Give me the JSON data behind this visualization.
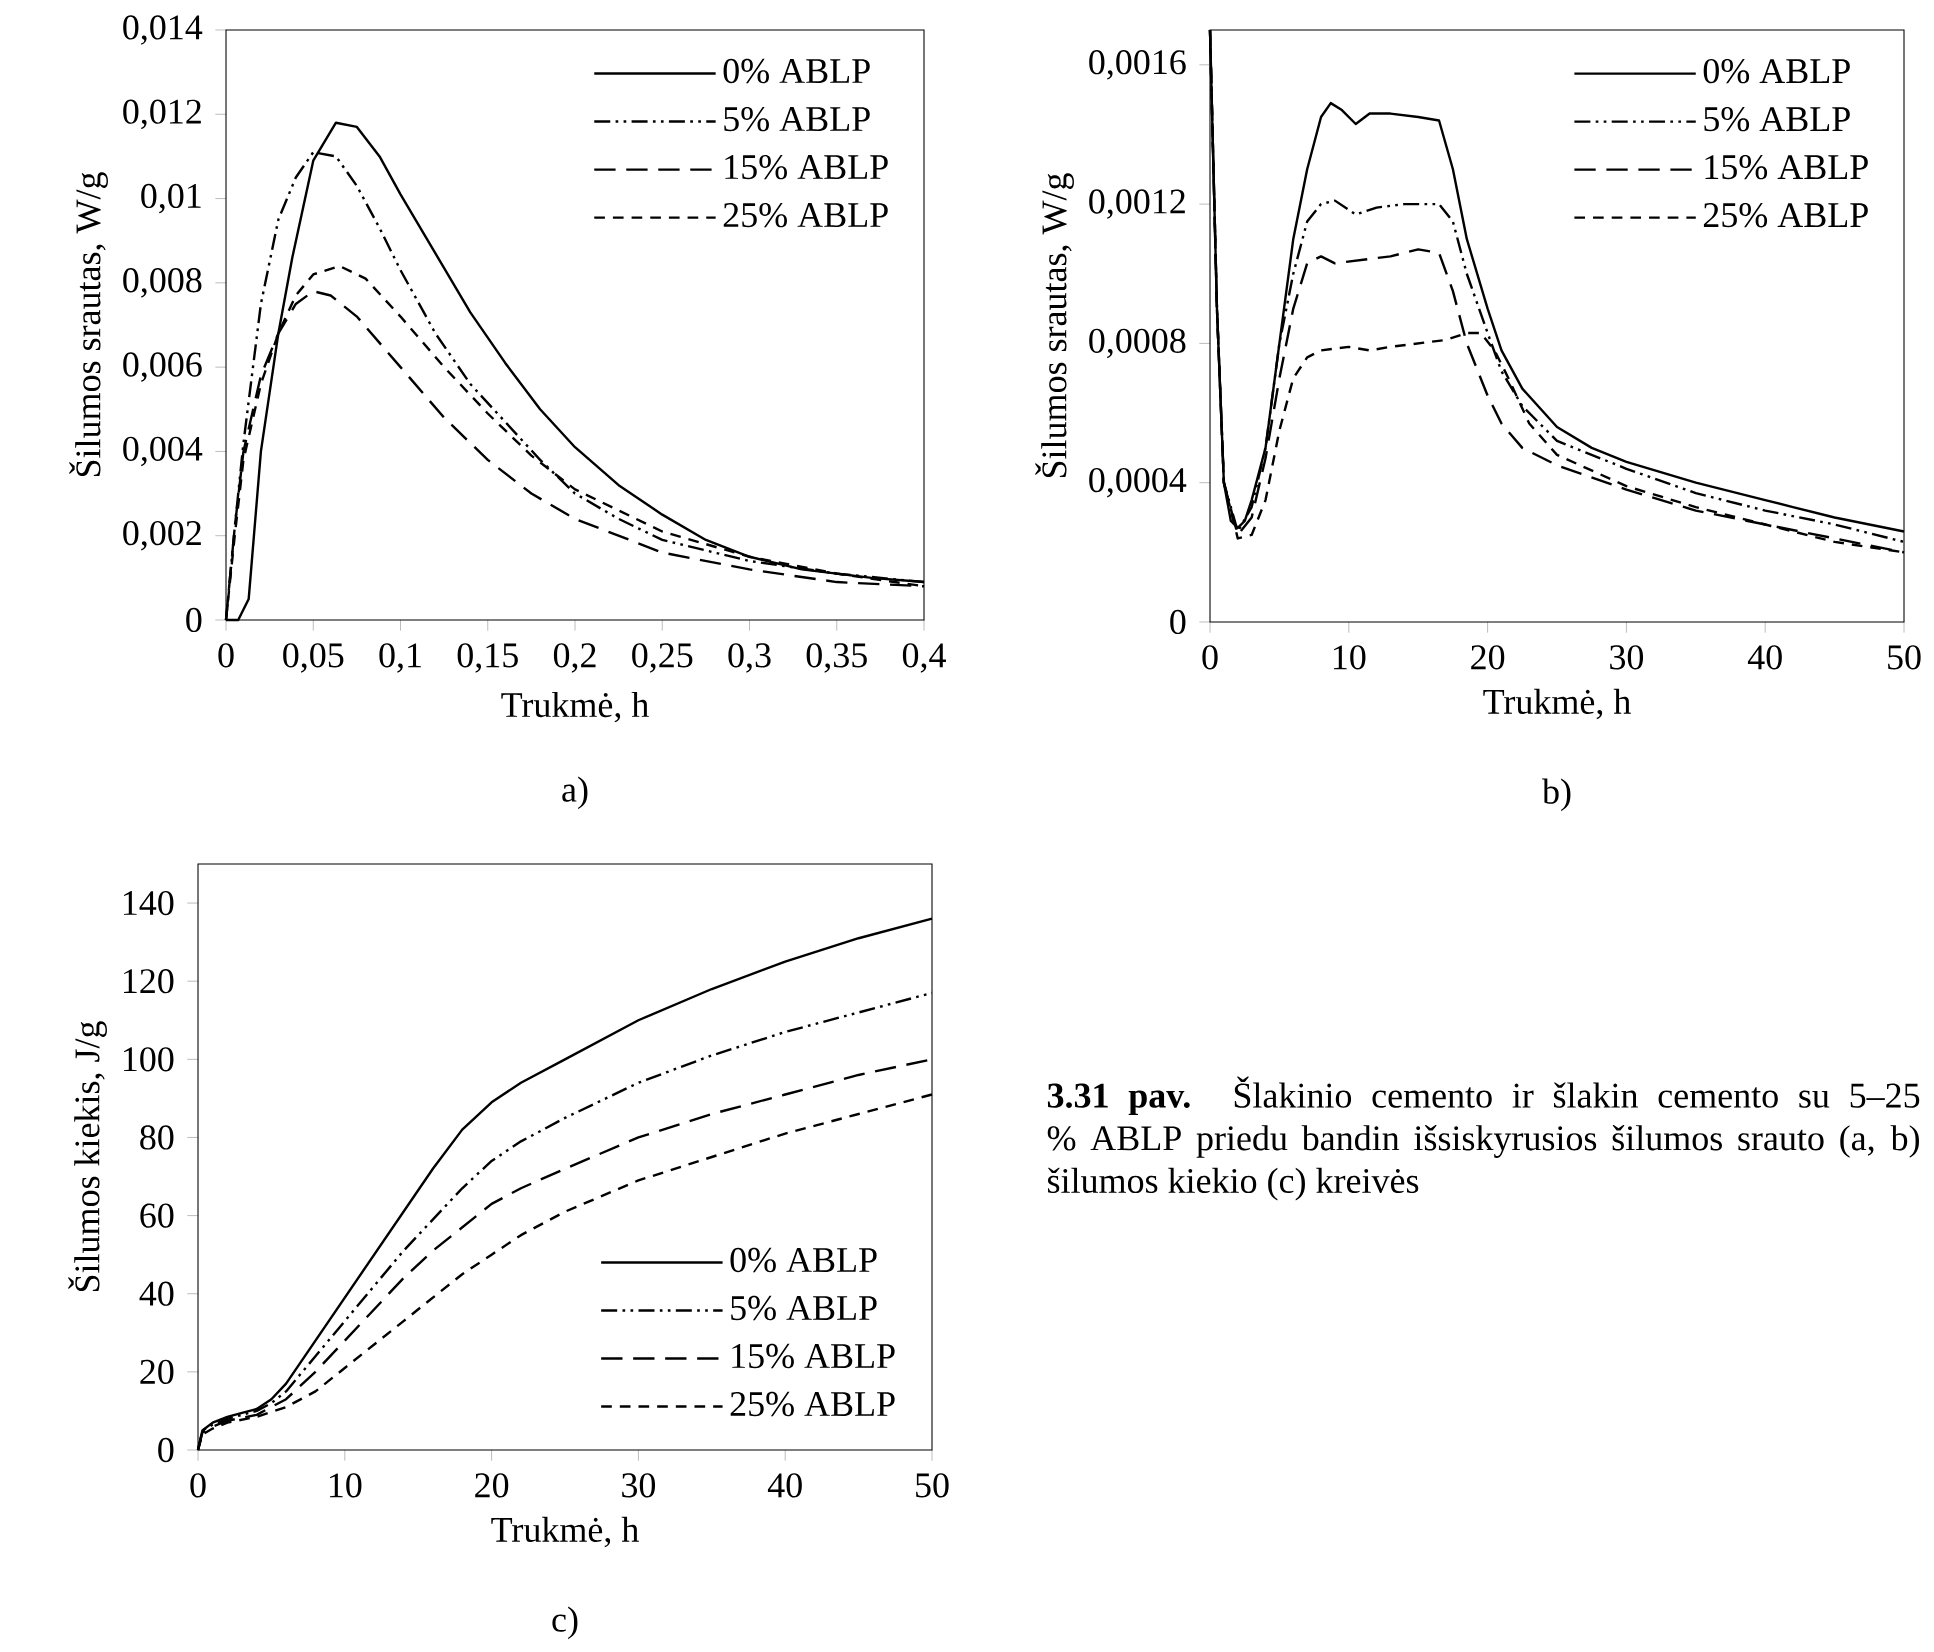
{
  "chart_data": [
    {
      "type": "line",
      "xlabel": "Trukmė, h",
      "ylabel": "Šilumos srautas, W/g",
      "annotations": [
        "a)"
      ],
      "legend": "top right",
      "xlim": [
        0,
        0.4
      ],
      "ylim": [
        0,
        0.014
      ],
      "xticks": [
        0,
        {
          "value": 0.05,
          "label": "0,05"
        },
        {
          "value": 0.1,
          "label": "0,1"
        },
        {
          "value": 0.15,
          "label": "0,15"
        },
        {
          "value": 0.2,
          "label": "0,2"
        },
        {
          "value": 0.25,
          "label": "0,25"
        },
        {
          "value": 0.3,
          "label": "0,3"
        },
        {
          "value": 0.35,
          "label": "0,35"
        },
        {
          "value": 0.4,
          "label": "0,4"
        }
      ],
      "yticks": [
        0,
        {
          "value": 0.002,
          "label": "0,002"
        },
        {
          "value": 0.004,
          "label": "0,004"
        },
        {
          "value": 0.006,
          "label": "0,006"
        },
        {
          "value": 0.008,
          "label": "0,008"
        },
        {
          "value": 0.01,
          "label": "0,01"
        },
        {
          "value": 0.012,
          "label": "0,012"
        },
        {
          "value": 0.014,
          "label": "0,014"
        }
      ],
      "series": [
        {
          "name": "0% ABLP",
          "color": "#000000",
          "line_style": "solid",
          "x": [
            0,
            0.007,
            0.013,
            0.02,
            0.03,
            0.038,
            0.05,
            0.063,
            0.075,
            0.088,
            0.1,
            0.12,
            0.14,
            0.16,
            0.18,
            0.2,
            0.225,
            0.25,
            0.275,
            0.3,
            0.33,
            0.37,
            0.4
          ],
          "values": [
            0,
            0,
            0.0005,
            0.004,
            0.0068,
            0.0086,
            0.0109,
            0.0118,
            0.0117,
            0.011,
            0.0101,
            0.0087,
            0.0073,
            0.0061,
            0.005,
            0.0041,
            0.0032,
            0.0025,
            0.0019,
            0.0015,
            0.0012,
            0.001,
            0.0009
          ]
        },
        {
          "name": "5% ABLP",
          "color": "#000000",
          "line_style": "dashdotdot",
          "x": [
            0,
            0.005,
            0.01,
            0.02,
            0.03,
            0.04,
            0.05,
            0.063,
            0.075,
            0.088,
            0.1,
            0.12,
            0.14,
            0.16,
            0.18,
            0.2,
            0.225,
            0.25,
            0.3,
            0.35,
            0.4
          ],
          "values": [
            0,
            0.0022,
            0.0042,
            0.0075,
            0.0095,
            0.0105,
            0.0111,
            0.011,
            0.0103,
            0.0093,
            0.0083,
            0.0068,
            0.0056,
            0.0047,
            0.0038,
            0.003,
            0.0024,
            0.0019,
            0.0014,
            0.0011,
            0.0009
          ]
        },
        {
          "name": "15% ABLP",
          "color": "#000000",
          "line_style": "longdashed",
          "x": [
            0,
            0.005,
            0.01,
            0.02,
            0.03,
            0.04,
            0.05,
            0.06,
            0.075,
            0.1,
            0.125,
            0.15,
            0.175,
            0.2,
            0.25,
            0.3,
            0.35,
            0.4
          ],
          "values": [
            0,
            0.0022,
            0.004,
            0.0058,
            0.0068,
            0.0075,
            0.0078,
            0.0077,
            0.0072,
            0.006,
            0.0048,
            0.0038,
            0.003,
            0.0024,
            0.0016,
            0.0012,
            0.0009,
            0.0008
          ]
        },
        {
          "name": "25% ABLP",
          "color": "#000000",
          "line_style": "dashed",
          "x": [
            0,
            0.005,
            0.01,
            0.02,
            0.03,
            0.04,
            0.05,
            0.065,
            0.08,
            0.1,
            0.125,
            0.15,
            0.175,
            0.2,
            0.25,
            0.3,
            0.35,
            0.4
          ],
          "values": [
            0,
            0.002,
            0.0038,
            0.0056,
            0.0068,
            0.0077,
            0.0082,
            0.0084,
            0.0081,
            0.0072,
            0.006,
            0.0049,
            0.0039,
            0.0031,
            0.0021,
            0.0015,
            0.0011,
            0.0008
          ]
        }
      ]
    },
    {
      "type": "line",
      "xlabel": "Trukmė, h",
      "ylabel": "Šilumos srautas, W/g",
      "annotations": [
        "b)"
      ],
      "legend": "top right",
      "xlim": [
        0,
        50
      ],
      "ylim": [
        0,
        0.0017
      ],
      "xticks": [
        0,
        10,
        20,
        30,
        40,
        50
      ],
      "yticks": [
        0,
        {
          "value": 0.0004,
          "label": "0,0004"
        },
        {
          "value": 0.0008,
          "label": "0,0008"
        },
        {
          "value": 0.0012,
          "label": "0,0012"
        },
        {
          "value": 0.0016,
          "label": "0,0016"
        }
      ],
      "series": [
        {
          "name": "0% ABLP",
          "color": "#000000",
          "line_style": "solid",
          "x": [
            0,
            0.5,
            1,
            1.5,
            2,
            2.5,
            3,
            4,
            5,
            6,
            7,
            8,
            8.7,
            9.5,
            10.5,
            11.5,
            13,
            15,
            16.5,
            17.5,
            18.5,
            20,
            21,
            22.5,
            25,
            27.5,
            30,
            35,
            40,
            42,
            45,
            50
          ],
          "values": [
            0.0017,
            0.0009,
            0.0004,
            0.00029,
            0.00027,
            0.00029,
            0.00035,
            0.0005,
            0.0008,
            0.0011,
            0.0013,
            0.00145,
            0.00149,
            0.00147,
            0.00143,
            0.00146,
            0.00146,
            0.00145,
            0.00144,
            0.0013,
            0.0011,
            0.0009,
            0.00078,
            0.00067,
            0.00056,
            0.0005,
            0.00046,
            0.0004,
            0.00035,
            0.00033,
            0.0003,
            0.00026
          ]
        },
        {
          "name": "5% ABLP",
          "color": "#000000",
          "line_style": "dashdotdot",
          "x": [
            0,
            0.5,
            1,
            2,
            3,
            4,
            5,
            6,
            7,
            8,
            9,
            10.5,
            12,
            14,
            16.5,
            17.5,
            18.5,
            20,
            21,
            22.5,
            25,
            30,
            35,
            40,
            45,
            50
          ],
          "values": [
            0.0017,
            0.0009,
            0.0004,
            0.00026,
            0.00033,
            0.0005,
            0.0008,
            0.001,
            0.00115,
            0.0012,
            0.00121,
            0.00117,
            0.00119,
            0.0012,
            0.0012,
            0.00115,
            0.001,
            0.00083,
            0.00072,
            0.00062,
            0.00052,
            0.00044,
            0.00037,
            0.00032,
            0.00028,
            0.00023
          ]
        },
        {
          "name": "15% ABLP",
          "color": "#000000",
          "line_style": "longdashed",
          "x": [
            0,
            0.5,
            1,
            2,
            3,
            4,
            5,
            6,
            7,
            8,
            9,
            11,
            13,
            15,
            16.5,
            17.5,
            18.5,
            20,
            21,
            22.5,
            25,
            30,
            35,
            40,
            45,
            50
          ],
          "values": [
            0.0017,
            0.0009,
            0.0004,
            0.00025,
            0.0003,
            0.00047,
            0.0007,
            0.0009,
            0.00103,
            0.00105,
            0.00103,
            0.00104,
            0.00105,
            0.00107,
            0.00106,
            0.00095,
            0.0008,
            0.00065,
            0.00057,
            0.0005,
            0.00045,
            0.00038,
            0.00032,
            0.00028,
            0.00024,
            0.0002
          ]
        },
        {
          "name": "25% ABLP",
          "color": "#000000",
          "line_style": "dashed",
          "x": [
            0,
            0.5,
            1,
            2,
            3,
            4,
            5,
            6,
            7,
            8,
            10,
            11.5,
            13,
            15,
            17,
            18.5,
            19.5,
            20.5,
            21.5,
            23,
            25,
            30,
            35,
            40,
            45,
            50
          ],
          "values": [
            0.0017,
            0.0009,
            0.0004,
            0.00024,
            0.00025,
            0.00035,
            0.00055,
            0.0007,
            0.00076,
            0.00078,
            0.00079,
            0.00078,
            0.00079,
            0.0008,
            0.00081,
            0.00083,
            0.00083,
            0.00078,
            0.0007,
            0.00057,
            0.00048,
            0.00039,
            0.00033,
            0.00028,
            0.00023,
            0.0002
          ]
        }
      ]
    },
    {
      "type": "line",
      "xlabel": "Trukmė, h",
      "ylabel": "Šilumos kiekis, J/g",
      "annotations": [
        "c)"
      ],
      "legend": "bottom right",
      "xlim": [
        0,
        50
      ],
      "ylim": [
        0,
        150
      ],
      "xticks": [
        0,
        10,
        20,
        30,
        40,
        50
      ],
      "yticks": [
        0,
        20,
        40,
        60,
        80,
        100,
        120,
        140
      ],
      "series": [
        {
          "name": "0% ABLP",
          "color": "#000000",
          "line_style": "solid",
          "x": [
            0,
            0.3,
            1,
            2,
            3,
            4,
            5,
            6,
            8,
            10,
            12,
            14,
            16,
            18,
            20,
            22,
            25,
            30,
            35,
            40,
            45,
            50
          ],
          "values": [
            0,
            5,
            7,
            8.5,
            9.5,
            10.5,
            13,
            17,
            28,
            39,
            50,
            61,
            72,
            82,
            89,
            94,
            100,
            110,
            118,
            125,
            131,
            136
          ]
        },
        {
          "name": "5% ABLP",
          "color": "#000000",
          "line_style": "dashdotdot",
          "x": [
            0,
            0.3,
            1,
            2,
            4,
            5,
            6,
            8,
            10,
            12,
            14,
            16,
            18,
            20,
            22,
            25,
            30,
            35,
            40,
            45,
            50
          ],
          "values": [
            0,
            5,
            6.5,
            8,
            10,
            12,
            15,
            24,
            33,
            42,
            51,
            59,
            67,
            74,
            79,
            85,
            94,
            101,
            107,
            112,
            117
          ]
        },
        {
          "name": "15% ABLP",
          "color": "#000000",
          "line_style": "longdashed",
          "x": [
            0,
            0.3,
            1,
            2,
            4,
            6,
            8,
            10,
            12,
            14,
            16,
            18,
            20,
            22,
            25,
            30,
            35,
            40,
            45,
            50
          ],
          "values": [
            0,
            4.5,
            6,
            7.5,
            9,
            13,
            20,
            28,
            36,
            44,
            51,
            57,
            63,
            67,
            72,
            80,
            86,
            91,
            96,
            100
          ]
        },
        {
          "name": "25% ABLP",
          "color": "#000000",
          "line_style": "dashed",
          "x": [
            0,
            0.3,
            1,
            2,
            4,
            6,
            8,
            10,
            12,
            14,
            16,
            18,
            20,
            22,
            25,
            30,
            35,
            40,
            45,
            50
          ],
          "values": [
            0,
            4,
            5.5,
            7,
            8.5,
            11,
            15,
            21,
            27,
            33,
            39,
            45,
            50,
            55,
            61,
            69,
            75,
            81,
            86,
            91
          ]
        }
      ]
    },
    {
      "type": "other",
      "annotations": [
        "**3.31 pav.** Šlakinio cemento ir šlakin cemento su 5–25 % ABLP priedu bandin išsiskyrusios šilumos srauto (a, b) šilumos kiekio (c) kreivės"
      ]
    }
  ]
}
